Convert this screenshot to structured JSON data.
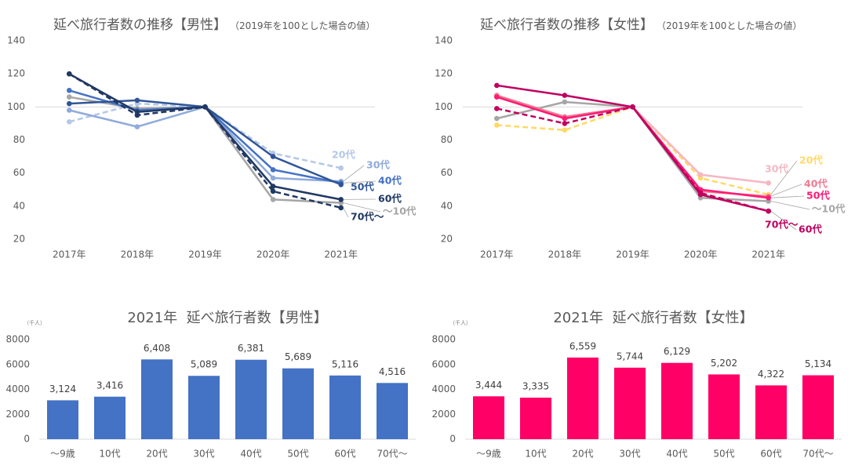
{
  "chart_data": [
    {
      "type": "line",
      "title": "延べ旅行者数の推移【男性】",
      "subtitle": "（2019年を100とした場合の値）",
      "categories": [
        "2017年",
        "2018年",
        "2019年",
        "2020年",
        "2021年"
      ],
      "ylim": [
        20,
        140
      ],
      "y_ticks": [
        20,
        40,
        60,
        80,
        100,
        120,
        140
      ],
      "reference_line": 100,
      "grid": false,
      "series": [
        {
          "name": "～10代",
          "values": [
            106,
            99,
            100,
            44,
            42
          ],
          "color": "#a6a6a6",
          "dashed": false
        },
        {
          "name": "20代",
          "values": [
            91,
            102,
            100,
            72,
            63
          ],
          "color": "#b4c7e7",
          "dashed": true
        },
        {
          "name": "30代",
          "values": [
            98,
            88,
            100,
            57,
            55
          ],
          "color": "#8faadc",
          "dashed": false
        },
        {
          "name": "40代",
          "values": [
            110,
            98,
            100,
            62,
            54
          ],
          "color": "#4472c4",
          "dashed": false
        },
        {
          "name": "50代",
          "values": [
            102,
            104,
            100,
            70,
            53
          ],
          "color": "#2f5597",
          "dashed": false
        },
        {
          "name": "60代",
          "values": [
            120,
            97,
            100,
            52,
            44
          ],
          "color": "#203864",
          "dashed": false
        },
        {
          "name": "70代～",
          "values": [
            120,
            95,
            100,
            49,
            39
          ],
          "color": "#203864",
          "dashed": true
        }
      ]
    },
    {
      "type": "line",
      "title": "延べ旅行者数の推移【女性】",
      "subtitle": "（2019年を100とした場合の値）",
      "categories": [
        "2017年",
        "2018年",
        "2019年",
        "2020年",
        "2021年"
      ],
      "ylim": [
        20,
        140
      ],
      "y_ticks": [
        20,
        40,
        60,
        80,
        100,
        120,
        140
      ],
      "reference_line": 100,
      "grid": false,
      "series": [
        {
          "name": "～10代",
          "values": [
            93,
            103,
            100,
            45,
            43
          ],
          "color": "#a6a6a6",
          "dashed": false
        },
        {
          "name": "20代",
          "values": [
            89,
            86,
            100,
            57,
            47
          ],
          "color": "#ffd966",
          "dashed": true
        },
        {
          "name": "30代",
          "values": [
            107,
            94,
            100,
            59,
            54
          ],
          "color": "#f5b7c3",
          "dashed": false
        },
        {
          "name": "40代",
          "values": [
            107,
            94,
            100,
            49,
            46
          ],
          "color": "#ee7b93",
          "dashed": false
        },
        {
          "name": "50代",
          "values": [
            106,
            93,
            100,
            50,
            45
          ],
          "color": "#ff1a75",
          "dashed": false
        },
        {
          "name": "60代",
          "values": [
            113,
            107,
            100,
            47,
            37
          ],
          "color": "#c0005f",
          "dashed": false
        },
        {
          "name": "70代～",
          "values": [
            99,
            90,
            100,
            48,
            37
          ],
          "color": "#c0005f",
          "dashed": true
        }
      ]
    },
    {
      "type": "bar",
      "title": "2021年  延べ旅行者数【男性】",
      "unit": "（千人）",
      "categories": [
        "～9歳",
        "10代",
        "20代",
        "30代",
        "40代",
        "50代",
        "60代",
        "70代～"
      ],
      "values": [
        3124,
        3416,
        6408,
        5089,
        6381,
        5689,
        5116,
        4516
      ],
      "data_labels": [
        "3,124",
        "3,416",
        "6,408",
        "5,089",
        "6,381",
        "5,689",
        "5,116",
        "4,516"
      ],
      "ylim": [
        0,
        8000
      ],
      "y_ticks": [
        0,
        2000,
        4000,
        6000,
        8000
      ],
      "grid": false,
      "color": "#4472c4"
    },
    {
      "type": "bar",
      "title": "2021年  延べ旅行者数【女性】",
      "unit": "（千人）",
      "categories": [
        "～9歳",
        "10代",
        "20代",
        "30代",
        "40代",
        "50代",
        "60代",
        "70代～"
      ],
      "values": [
        3444,
        3335,
        6559,
        5744,
        6129,
        5202,
        4322,
        5134
      ],
      "data_labels": [
        "3,444",
        "3,335",
        "6,559",
        "5,744",
        "6,129",
        "5,202",
        "4,322",
        "5,134"
      ],
      "ylim": [
        0,
        8000
      ],
      "y_ticks": [
        0,
        2000,
        4000,
        6000,
        8000
      ],
      "grid": false,
      "color": "#ff0066"
    }
  ]
}
